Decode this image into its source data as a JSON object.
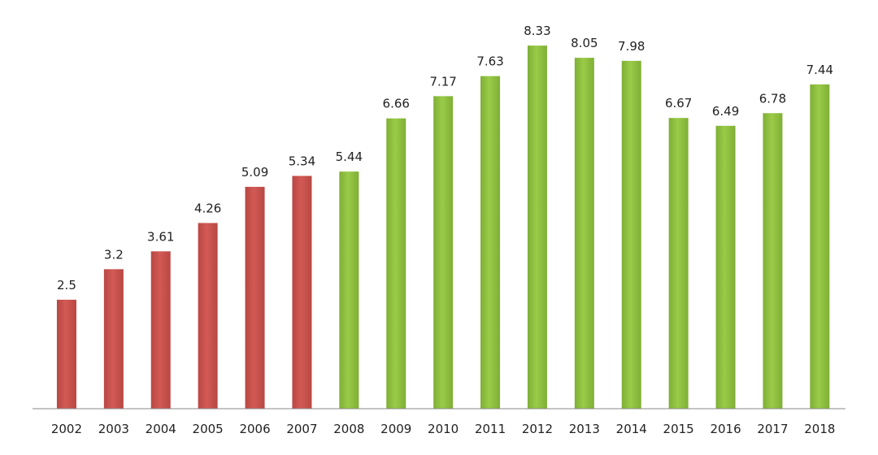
{
  "chart_data": {
    "type": "bar",
    "categories": [
      "2002",
      "2003",
      "2004",
      "2005",
      "2006",
      "2007",
      "2008",
      "2009",
      "2010",
      "2011",
      "2012",
      "2013",
      "2014",
      "2015",
      "2016",
      "2017",
      "2018"
    ],
    "values": [
      2.5,
      3.2,
      3.61,
      4.26,
      5.09,
      5.34,
      5.44,
      6.66,
      7.17,
      7.63,
      8.33,
      8.05,
      7.98,
      6.67,
      6.49,
      6.78,
      7.44
    ],
    "value_labels": [
      "2.5",
      "3.2",
      "3.61",
      "4.26",
      "5.09",
      "5.34",
      "5.44",
      "6.66",
      "7.17",
      "7.63",
      "8.33",
      "8.05",
      "7.98",
      "6.67",
      "6.49",
      "6.78",
      "7.44"
    ],
    "bar_colors": [
      "#c9504c",
      "#c9504c",
      "#c9504c",
      "#c9504c",
      "#c9504c",
      "#c9504c",
      "#8fbf3f",
      "#8fbf3f",
      "#8fbf3f",
      "#8fbf3f",
      "#8fbf3f",
      "#8fbf3f",
      "#8fbf3f",
      "#8fbf3f",
      "#8fbf3f",
      "#8fbf3f",
      "#8fbf3f"
    ],
    "ylim": [
      0,
      8.5
    ],
    "grid": false
  }
}
